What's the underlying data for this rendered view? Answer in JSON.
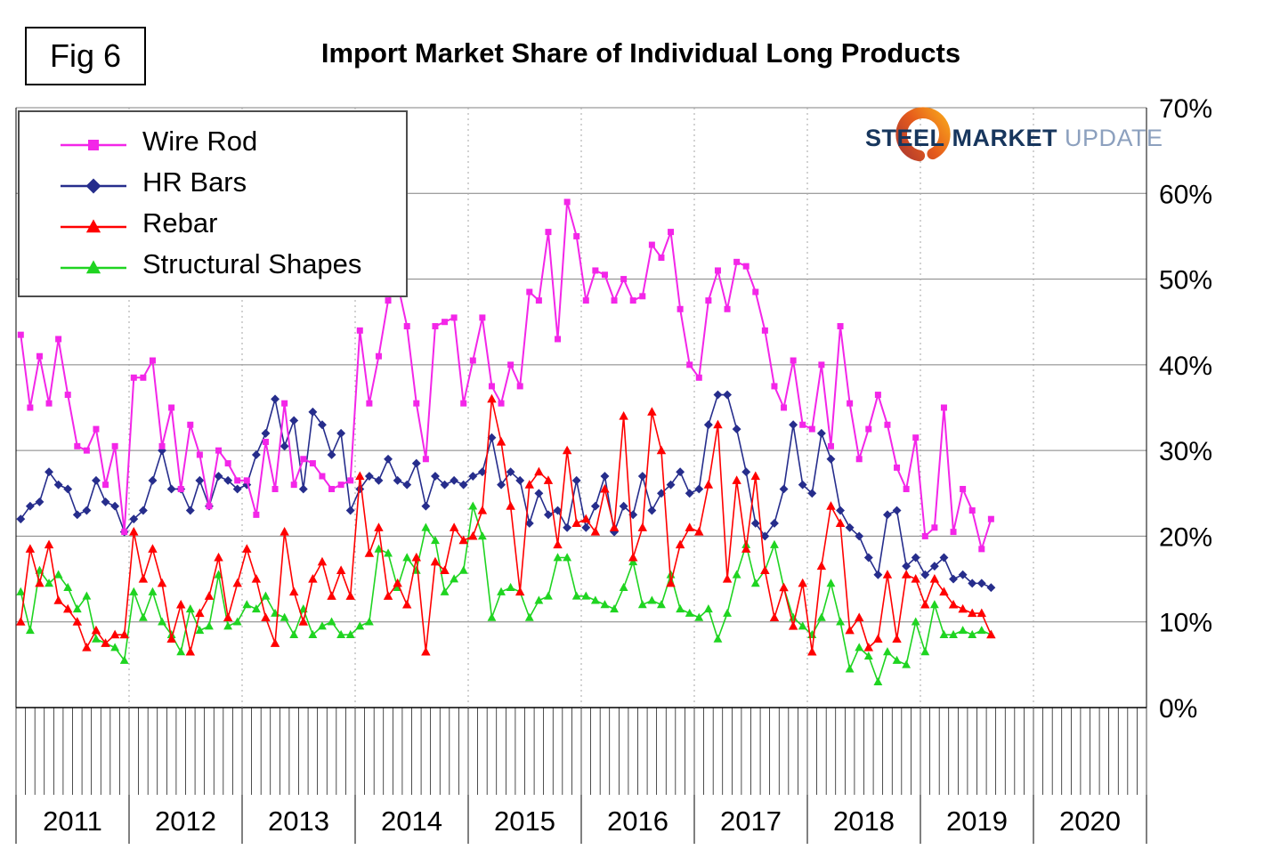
{
  "fig_label": "Fig 6",
  "title": "Import Market Share of Individual Long Products",
  "logo": {
    "steel": "STEEL",
    "market": "MARKET",
    "update": "UPDATE"
  },
  "chart_data": {
    "type": "line",
    "title": "Import Market Share of Individual Long Products",
    "x_start": "2011-01",
    "x_interval": "monthly",
    "x_years": [
      2011,
      2012,
      2013,
      2014,
      2015,
      2016,
      2017,
      2018,
      2019,
      2020
    ],
    "ylim": [
      0,
      70
    ],
    "y_tick_labels": [
      "0%",
      "10%",
      "20%",
      "30%",
      "40%",
      "50%",
      "60%",
      "70%"
    ],
    "grid": {
      "horizontal": true,
      "vertical_year_dotted": true
    },
    "legend_position": "top-left",
    "series": [
      {
        "name": "Wire Rod",
        "color": "#F326E8",
        "marker": "square",
        "values": [
          43.5,
          35,
          41,
          35.5,
          43,
          36.5,
          30.5,
          30,
          32.5,
          26,
          30.5,
          20.5,
          38.5,
          38.5,
          40.5,
          30.5,
          35,
          25.5,
          33,
          29.5,
          23.5,
          30,
          28.5,
          26.5,
          26.5,
          22.5,
          31,
          25.5,
          35.5,
          26,
          29,
          28.5,
          27,
          25.5,
          26,
          26.5,
          44,
          35.5,
          41,
          47.5,
          49.5,
          44.5,
          35.5,
          29,
          44.5,
          45,
          45.5,
          35.5,
          40.5,
          45.5,
          37.5,
          35.5,
          40,
          37.5,
          48.5,
          47.5,
          55.5,
          43,
          59,
          55,
          47.5,
          51,
          50.5,
          47.5,
          50,
          47.5,
          48,
          54,
          52.5,
          55.5,
          46.5,
          40,
          38.5,
          47.5,
          51,
          46.5,
          52,
          51.5,
          48.5,
          44,
          37.5,
          35,
          40.5,
          33,
          32.5,
          40,
          30.5,
          44.5,
          35.5,
          29,
          32.5,
          36.5,
          33,
          28,
          25.5,
          31.5,
          20,
          21,
          35,
          20.5,
          25.5,
          23,
          18.5,
          22
        ]
      },
      {
        "name": "HR Bars",
        "color": "#262D8C",
        "marker": "diamond",
        "values": [
          22,
          23.5,
          24,
          27.5,
          26,
          25.5,
          22.5,
          23,
          26.5,
          24,
          23.5,
          20.5,
          22,
          23,
          26.5,
          30,
          25.5,
          25.5,
          23,
          26.5,
          23.5,
          27,
          26.5,
          25.5,
          26,
          29.5,
          32,
          36,
          30.5,
          33.5,
          25.5,
          34.5,
          33,
          29.5,
          32,
          23,
          25.5,
          27,
          26.5,
          29,
          26.5,
          26,
          28.5,
          23.5,
          27,
          26,
          26.5,
          26,
          27,
          27.5,
          31.5,
          26,
          27.5,
          26.5,
          21.5,
          25,
          22.5,
          23,
          21,
          26.5,
          21,
          23.5,
          27,
          20.5,
          23.5,
          22.5,
          27,
          23,
          25,
          26,
          27.5,
          25,
          25.5,
          33,
          36.5,
          36.5,
          32.5,
          27.5,
          21.5,
          20,
          21.5,
          25.5,
          33,
          26,
          25,
          32,
          29,
          23,
          21,
          20,
          17.5,
          15.5,
          22.5,
          23,
          16.5,
          17.5,
          15.5,
          16.5,
          17.5,
          15,
          15.5,
          14.5,
          14.5,
          14
        ]
      },
      {
        "name": "Rebar",
        "color": "#FF0000",
        "marker": "triangle",
        "values": [
          10,
          18.5,
          14.5,
          19,
          12.5,
          11.5,
          10,
          7,
          9,
          7.5,
          8.5,
          8.5,
          20.5,
          15,
          18.5,
          14.5,
          8,
          12,
          6.5,
          11,
          13,
          17.5,
          10.5,
          14.5,
          18.5,
          15,
          10.5,
          7.5,
          20.5,
          13.5,
          10,
          15,
          17,
          13,
          16,
          13,
          27,
          18,
          21,
          13,
          14.5,
          12,
          17.5,
          6.5,
          17,
          16,
          21,
          19.5,
          20,
          23,
          36,
          31,
          23.5,
          13.5,
          26,
          27.5,
          26.5,
          19,
          30,
          21.5,
          22,
          20.5,
          25.5,
          21,
          34,
          17.5,
          21,
          34.5,
          30,
          14.5,
          19,
          21,
          20.5,
          26,
          33,
          15,
          26.5,
          18.5,
          27,
          16,
          10.5,
          14,
          9.5,
          14.5,
          6.5,
          16.5,
          23.5,
          21.5,
          9,
          10.5,
          7,
          8,
          15.5,
          8,
          15.5,
          15,
          12,
          15,
          13.5,
          12,
          11.5,
          11,
          11,
          8.5
        ]
      },
      {
        "name": "Structural Shapes",
        "color": "#1FD421",
        "marker": "triangle",
        "values": [
          13.5,
          9,
          16,
          14.5,
          15.5,
          14,
          11.5,
          13,
          8,
          7.5,
          7,
          5.5,
          13.5,
          10.5,
          13.5,
          10,
          8.5,
          6.5,
          11.5,
          9,
          9.5,
          15.5,
          9.5,
          10,
          12,
          11.5,
          13,
          11,
          10.5,
          8.5,
          11.5,
          8.5,
          9.5,
          10,
          8.5,
          8.5,
          9.5,
          10,
          18.5,
          18,
          14,
          17.5,
          16,
          21,
          19.5,
          13.5,
          15,
          16,
          23.5,
          20,
          10.5,
          13.5,
          14,
          13.5,
          10.5,
          12.5,
          13,
          17.5,
          17.5,
          13,
          13,
          12.5,
          12,
          11.5,
          14,
          17,
          12,
          12.5,
          12,
          15.5,
          11.5,
          11,
          10.5,
          11.5,
          8,
          11,
          15.5,
          19,
          14.5,
          16,
          19,
          14,
          10.5,
          9.5,
          8.5,
          10.5,
          14.5,
          10,
          4.5,
          7,
          6,
          3,
          6.5,
          5.5,
          5,
          10,
          6.5,
          12,
          8.5,
          8.5,
          9,
          8.5,
          9,
          8.5
        ]
      }
    ]
  }
}
